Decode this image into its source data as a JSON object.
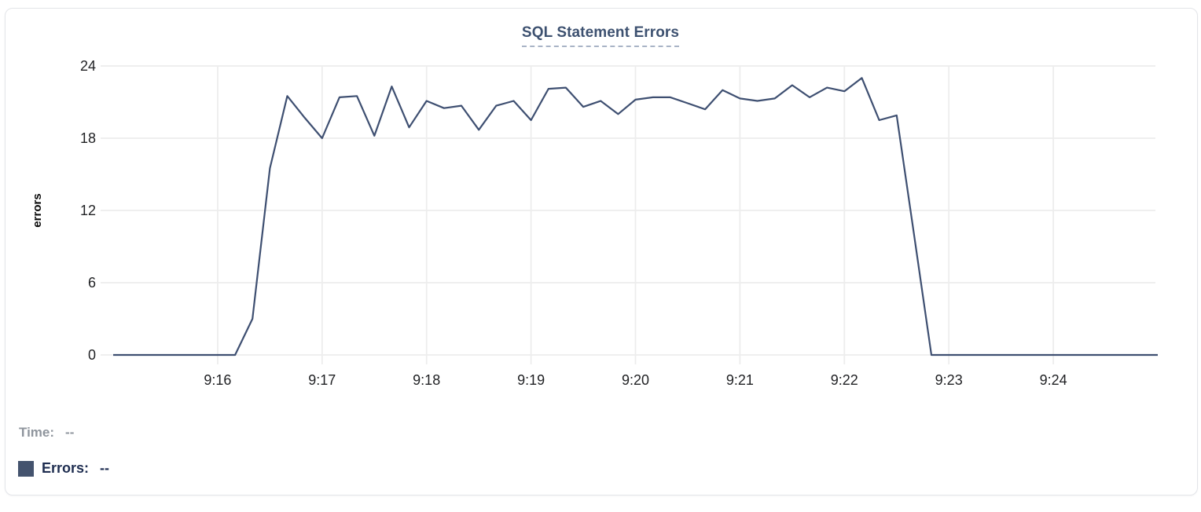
{
  "chart_data": {
    "type": "line",
    "title": "SQL Statement Errors",
    "xlabel": "",
    "ylabel": "errors",
    "ylim": [
      0,
      24
    ],
    "y_ticks": [
      0,
      6,
      12,
      18,
      24
    ],
    "x_domain": [
      "9:15:00",
      "9:25:00"
    ],
    "x_tick_labels": [
      "9:16",
      "9:17",
      "9:18",
      "9:19",
      "9:20",
      "9:21",
      "9:22",
      "9:23",
      "9:24"
    ],
    "interval_seconds": 10,
    "grid": true,
    "legend_position": "bottom-left",
    "x_times": [
      "9:15:00",
      "9:15:10",
      "9:15:20",
      "9:15:30",
      "9:15:40",
      "9:15:50",
      "9:16:00",
      "9:16:10",
      "9:16:20",
      "9:16:30",
      "9:16:40",
      "9:16:50",
      "9:17:00",
      "9:17:10",
      "9:17:20",
      "9:17:30",
      "9:17:40",
      "9:17:50",
      "9:18:00",
      "9:18:10",
      "9:18:20",
      "9:18:30",
      "9:18:40",
      "9:18:50",
      "9:19:00",
      "9:19:10",
      "9:19:20",
      "9:19:30",
      "9:19:40",
      "9:19:50",
      "9:20:00",
      "9:20:10",
      "9:20:20",
      "9:20:30",
      "9:20:40",
      "9:20:50",
      "9:21:00",
      "9:21:10",
      "9:21:20",
      "9:21:30",
      "9:21:40",
      "9:21:50",
      "9:22:00",
      "9:22:10",
      "9:22:20",
      "9:22:30",
      "9:22:40",
      "9:22:50",
      "9:23:00",
      "9:23:10",
      "9:23:20",
      "9:23:30",
      "9:23:40",
      "9:23:50",
      "9:24:00",
      "9:24:10",
      "9:24:20",
      "9:24:30",
      "9:24:40",
      "9:24:50",
      "9:25:00"
    ],
    "series": [
      {
        "name": "Errors",
        "color": "#3e4f71",
        "values": [
          0,
          0,
          0,
          0,
          0,
          0,
          0,
          0,
          3,
          15.5,
          21.5,
          19.7,
          18,
          21.4,
          21.5,
          18.2,
          22.3,
          18.9,
          21.1,
          20.5,
          20.7,
          18.7,
          20.7,
          21.1,
          19.5,
          22.1,
          22.2,
          20.6,
          21.1,
          20,
          21.2,
          21.4,
          21.4,
          20.9,
          20.4,
          22,
          21.3,
          21.1,
          21.3,
          22.4,
          21.4,
          22.2,
          21.9,
          23,
          19.5,
          19.9,
          10,
          0,
          0,
          0,
          0,
          0,
          0,
          0,
          0,
          0,
          0,
          0,
          0,
          0,
          0
        ]
      }
    ]
  },
  "legend": {
    "time_label": "Time:",
    "time_value": "--",
    "errors_label": "Errors:",
    "errors_value": "--",
    "swatch_color": "#44536e"
  },
  "colors": {
    "line": "#3e4f71",
    "gridline": "#ededed",
    "tick_text": "#1f2023",
    "title_text": "#3d5170",
    "title_underline": "#a9b4c6",
    "legend_muted": "#8f959d",
    "legend_dark": "#1e2d50",
    "card_border": "#e3e5e9"
  }
}
